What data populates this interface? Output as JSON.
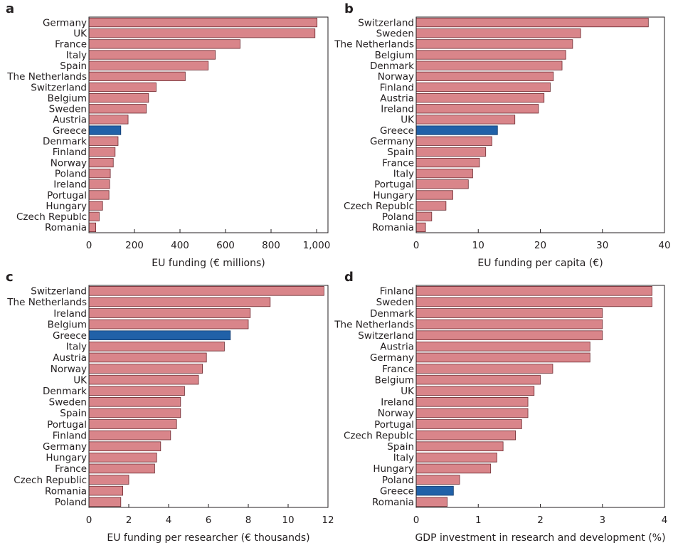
{
  "chart_data": [
    {
      "panel": "a",
      "type": "bar",
      "orientation": "horizontal",
      "xlabel": "EU funding (€ millions)",
      "xlim": [
        0,
        1050
      ],
      "xticks": [
        0,
        200,
        400,
        600,
        800,
        1000
      ],
      "xtick_labels": [
        "0",
        "200",
        "400",
        "600",
        "800",
        "1,000"
      ],
      "categories": [
        "Germany",
        "UK",
        "France",
        "Italy",
        "Spain",
        "The Netherlands",
        "Switzerland",
        "Belgium",
        "Sweden",
        "Austria",
        "Greece",
        "Denmark",
        "Finland",
        "Norway",
        "Poland",
        "Ireland",
        "Portugal",
        "Hungary",
        "Czech Republc",
        "Romania"
      ],
      "values": [
        1002,
        993,
        664,
        555,
        524,
        423,
        295,
        262,
        252,
        172,
        140,
        128,
        115,
        107,
        94,
        91,
        88,
        60,
        45,
        30
      ],
      "highlight": "Greece"
    },
    {
      "panel": "b",
      "type": "bar",
      "orientation": "horizontal",
      "xlabel": "EU funding per capita (€)",
      "xlim": [
        0,
        40
      ],
      "xticks": [
        0,
        10,
        20,
        30,
        40
      ],
      "xtick_labels": [
        "0",
        "10",
        "20",
        "30",
        "40"
      ],
      "categories": [
        "Switzerland",
        "Sweden",
        "The Netherlands",
        "Belgium",
        "Denmark",
        "Norway",
        "Finland",
        "Austria",
        "Ireland",
        "UK",
        "Greece",
        "Germany",
        "Spain",
        "France",
        "Italy",
        "Portugal",
        "Hungary",
        "Czech Republc",
        "Poland",
        "Romania"
      ],
      "values": [
        37.4,
        26.5,
        25.2,
        24.1,
        23.5,
        22.1,
        21.6,
        20.6,
        19.7,
        15.9,
        13.1,
        12.2,
        11.2,
        10.2,
        9.1,
        8.4,
        5.9,
        4.8,
        2.5,
        1.5
      ],
      "highlight": "Greece"
    },
    {
      "panel": "c",
      "type": "bar",
      "orientation": "horizontal",
      "xlabel": "EU funding per researcher (€ thousands)",
      "xlim": [
        0,
        12
      ],
      "xticks": [
        0,
        2,
        4,
        6,
        8,
        10,
        12
      ],
      "xtick_labels": [
        "0",
        "2",
        "4",
        "6",
        "8",
        "10",
        "12"
      ],
      "categories": [
        "Switzerland",
        "The Netherlands",
        "Ireland",
        "Belgium",
        "Greece",
        "Italy",
        "Austria",
        "Norway",
        "UK",
        "Denmark",
        "Sweden",
        "Spain",
        "Portugal",
        "Finland",
        "Germany",
        "Hungary",
        "France",
        "Czech Republic",
        "Romania",
        "Poland"
      ],
      "values": [
        11.8,
        9.1,
        8.1,
        8.0,
        7.1,
        6.8,
        5.9,
        5.7,
        5.5,
        4.8,
        4.6,
        4.6,
        4.4,
        4.1,
        3.6,
        3.4,
        3.3,
        2.0,
        1.7,
        1.6
      ],
      "highlight": "Greece"
    },
    {
      "panel": "d",
      "type": "bar",
      "orientation": "horizontal",
      "xlabel": "GDP investment in research and development (%)",
      "xlim": [
        0,
        4
      ],
      "xticks": [
        0,
        1,
        2,
        3,
        4
      ],
      "xtick_labels": [
        "0",
        "1",
        "2",
        "3",
        "4"
      ],
      "categories": [
        "Finland",
        "Sweden",
        "Denmark",
        "The Netherlands",
        "Switzerland",
        "Austria",
        "Germany",
        "France",
        "Belgium",
        "UK",
        "Ireland",
        "Norway",
        "Portugal",
        "Czech Republc",
        "Spain",
        "Italy",
        "Hungary",
        "Poland",
        "Greece",
        "Romania"
      ],
      "values": [
        3.8,
        3.8,
        3.0,
        3.0,
        3.0,
        2.8,
        2.8,
        2.2,
        2.0,
        1.9,
        1.8,
        1.8,
        1.7,
        1.6,
        1.4,
        1.3,
        1.2,
        0.7,
        0.6,
        0.5
      ],
      "highlight": "Greece"
    }
  ],
  "colors": {
    "bar_fill": "#d9858a",
    "bar_stroke": "#6b2a30",
    "highlight_fill": "#2161a8",
    "highlight_stroke": "#123a6b",
    "axis": "#231f20"
  }
}
